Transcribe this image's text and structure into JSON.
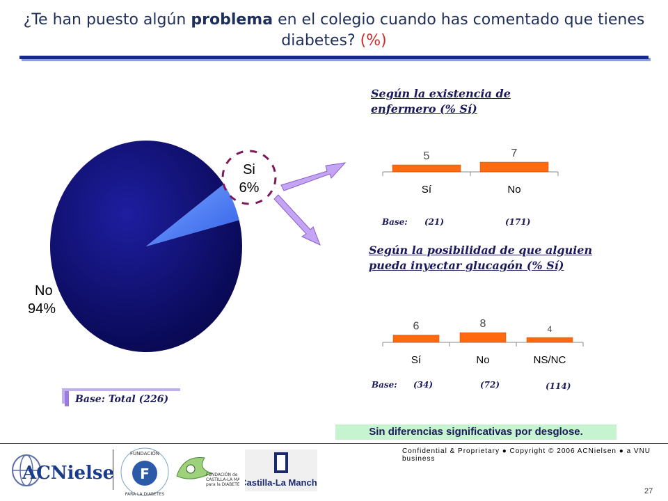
{
  "title": {
    "part1": "¿Te han puesto algún ",
    "bold": "problema",
    "part2": " en el colegio cuando has comentado que tienes diabetes? ",
    "unit": "(%)"
  },
  "pie": {
    "slices": [
      {
        "label": "No",
        "value": 94,
        "display": "94%",
        "color": "#0b0b6e"
      },
      {
        "label": "Si",
        "value": 6,
        "display": "6%",
        "color": "#5a8cff"
      }
    ],
    "base": "Base: Total (226)"
  },
  "chart_data": [
    {
      "type": "pie",
      "categories": [
        "No",
        "Si"
      ],
      "values": [
        94,
        6
      ],
      "title": "¿Te han puesto algún problema en el colegio cuando has comentado que tienes diabetes? (%)"
    },
    {
      "type": "bar",
      "title": "Según la existencia de enfermero (% Sí)",
      "categories": [
        "Sí",
        "No"
      ],
      "values": [
        5,
        7
      ],
      "bases": [
        "(21)",
        "(171)"
      ],
      "color": "#ff6a10"
    },
    {
      "type": "bar",
      "title": "Según la posibilidad de que alguien pueda inyectar glucagón (% Sí)",
      "categories": [
        "Sí",
        "No",
        "NS/NC"
      ],
      "values": [
        6,
        8,
        4
      ],
      "bases": [
        "(34)",
        "(72)",
        "(114)"
      ],
      "color": "#ff6a10"
    }
  ],
  "bar1": {
    "title_line1": "Según la existencia  de",
    "title_line2": "enfermero  (% Sí)",
    "base_label": "Base:",
    "base_values": [
      "(21)",
      "(171)"
    ]
  },
  "bar2": {
    "title_line1": "Según la posibilidad de que alguien",
    "title_line2": "pueda inyectar glucagón (% Sí)",
    "base_label": "Base:",
    "base_values": [
      "(34)",
      "(72)",
      "(114)"
    ]
  },
  "note": "Sin diferencias significativas por desglose.",
  "footer": {
    "confidential": "Confidential & Proprietary ● Copyright © 2006 ACNielsen ● a VNU business",
    "page_number": "27",
    "logos": {
      "acnielsen": "ACNielsen",
      "fundacion_diabetes": "FUNDACIÓN PARA LA DIABETES",
      "fundacion_clm": "FUNDACIÓN de CASTILLA-LA MANCHA para la DIABETES",
      "castilla": "Castilla-La Mancha"
    }
  }
}
